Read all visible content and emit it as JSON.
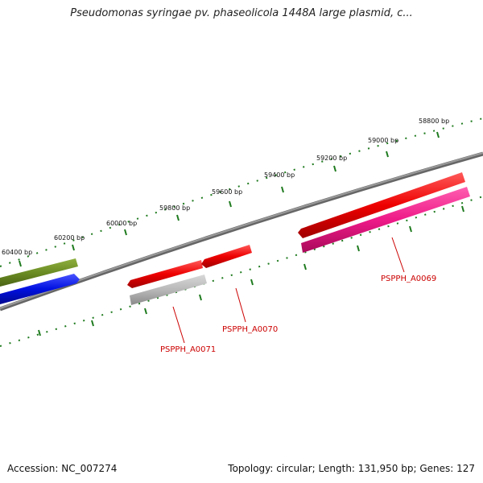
{
  "title": "Pseudomonas syringae pv. phaseolicola 1448A large plasmid, c...",
  "accession": "Accession: NC_007274",
  "summary": "Topology: circular; Length: 131,950 bp; Genes: 127",
  "scale_labels": [
    {
      "text": "60400 bp"
    },
    {
      "text": "60200 bp"
    },
    {
      "text": "60000 bp"
    },
    {
      "text": "59800 bp"
    },
    {
      "text": "59600 bp"
    },
    {
      "text": "59400 bp"
    },
    {
      "text": "59200 bp"
    },
    {
      "text": "59000 bp"
    },
    {
      "text": "58800 bp"
    }
  ],
  "gene_labels": [
    {
      "text": "PSPPH_A0071"
    },
    {
      "text": "PSPPH_A0070"
    },
    {
      "text": "PSPPH_A0069"
    }
  ],
  "colors": {
    "backbone": "#7a7a7a",
    "tick": "#1e7a1e",
    "gene_red": "#e00000",
    "gene_pink": "#e0107a",
    "gene_gray": "#b0b0b0",
    "gene_olive": "#6b8c23",
    "gene_blue": "#0010e0",
    "label_red": "#cc0000"
  }
}
